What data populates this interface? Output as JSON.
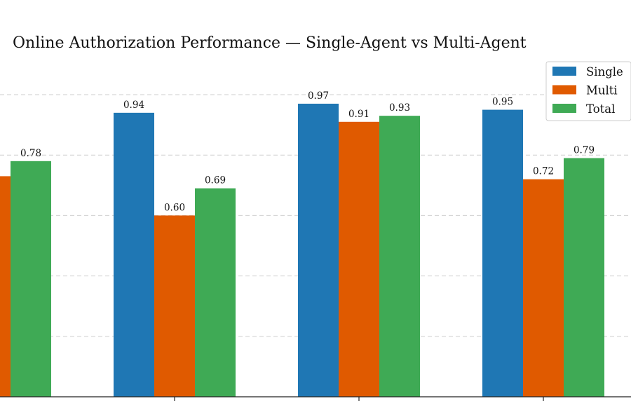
{
  "chart_data": {
    "type": "bar",
    "title": "Online Authorization Performance — Single-Agent vs Multi-Agent",
    "xlabel": "",
    "ylabel": "",
    "categories": [
      "",
      "",
      "",
      ""
    ],
    "series": [
      {
        "name": "Single",
        "color": "#1f77b4",
        "values": [
          null,
          0.94,
          0.97,
          0.95
        ]
      },
      {
        "name": "Multi",
        "color": "#e05a00",
        "values": [
          0.73,
          0.6,
          0.91,
          0.72
        ]
      },
      {
        "name": "Total",
        "color": "#3faa55",
        "values": [
          0.78,
          0.69,
          0.93,
          0.79
        ]
      }
    ],
    "value_labels": [
      [
        "",
        "0.94",
        "0.97",
        "0.95"
      ],
      [
        "",
        "0.60",
        "0.91",
        "0.72"
      ],
      [
        "0.78",
        "0.69",
        "0.93",
        "0.79"
      ]
    ],
    "ylim": [
      0,
      1.0
    ],
    "grid": true,
    "grid_axis": "y",
    "legend_position": "top-right"
  }
}
